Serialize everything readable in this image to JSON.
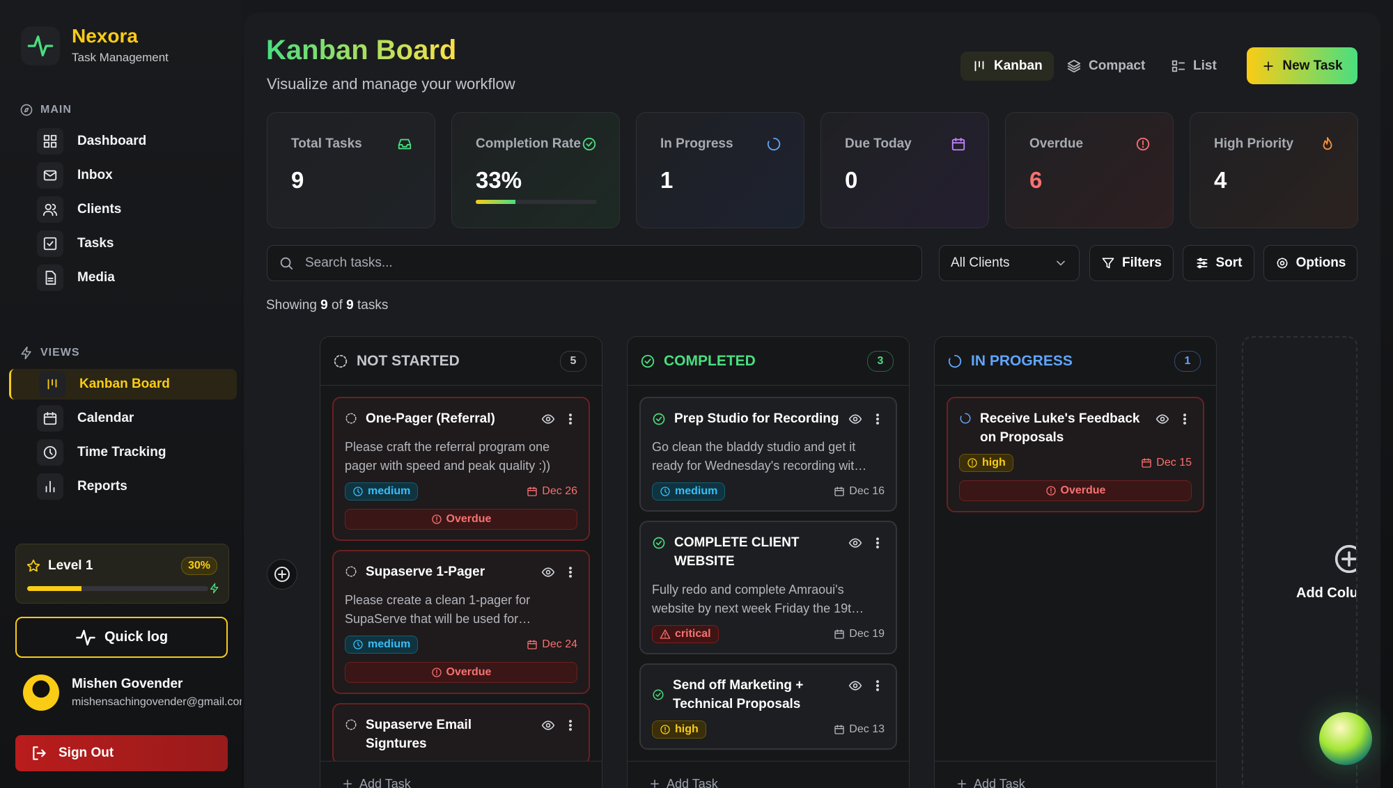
{
  "sidebar": {
    "brand": "Nexora",
    "tagline": "Task Management",
    "sections": [
      {
        "title": "MAIN",
        "items": [
          "Dashboard",
          "Inbox",
          "Clients",
          "Tasks",
          "Media"
        ]
      },
      {
        "title": "VIEWS",
        "items": [
          "Kanban Board",
          "Calendar",
          "Time Tracking",
          "Reports"
        ]
      }
    ],
    "level": {
      "label": "Level 1",
      "percent": "30%"
    },
    "quick_log": "Quick log",
    "user": {
      "name": "Mishen Govender",
      "email": "mishensachingovender@gmail.com"
    },
    "sign_out": "Sign Out"
  },
  "header": {
    "title": "Kanban Board",
    "subtitle": "Visualize and manage your workflow",
    "views": [
      "Kanban",
      "Compact",
      "List"
    ],
    "new_task": "New Task"
  },
  "stats": [
    {
      "label": "Total Tasks",
      "value": "9"
    },
    {
      "label": "Completion Rate",
      "value": "33%"
    },
    {
      "label": "In Progress",
      "value": "1"
    },
    {
      "label": "Due Today",
      "value": "0"
    },
    {
      "label": "Overdue",
      "value": "6"
    },
    {
      "label": "High Priority",
      "value": "4"
    }
  ],
  "toolbar": {
    "search": "Search tasks...",
    "client": "All Clients",
    "buttons": [
      "Filters",
      "Sort",
      "Options"
    ]
  },
  "showing": {
    "prefix": "Showing",
    "shown": "9",
    "of": "of",
    "total": "9",
    "suffix": "tasks"
  },
  "columns": [
    {
      "title": "NOT STARTED",
      "count": "5",
      "cards": [
        {
          "title": "One-Pager (Referral)",
          "description": "Please craft the referral program one pager with speed and peak quality :))",
          "priority": "medium",
          "due": "Dec 26",
          "status": "Overdue"
        },
        {
          "title": "Supaserve 1-Pager",
          "description": "Please create a clean 1-pager for SupaServe that will be used for…",
          "priority": "medium",
          "due": "Dec 24",
          "status": "Overdue"
        },
        {
          "title": "Supaserve Email Signtures"
        }
      ]
    },
    {
      "title": "COMPLETED",
      "count": "3",
      "cards": [
        {
          "title": "Prep Studio for Recording",
          "description": "Go clean the bladdy studio and get it ready for Wednesday's recording wit…",
          "priority": "medium",
          "due": "Dec 16"
        },
        {
          "title": "COMPLETE CLIENT WEBSITE",
          "description": "Fully redo and complete Amraoui's website by next week Friday the 19t…",
          "priority": "critical",
          "due": "Dec 19"
        },
        {
          "title": "Send off Marketing + Technical Proposals",
          "priority": "high",
          "due": "Dec 13"
        }
      ]
    },
    {
      "title": "IN PROGRESS",
      "count": "1",
      "cards": [
        {
          "title": "Receive Luke's Feedback on Proposals",
          "priority": "high",
          "due": "Dec 15",
          "status": "Overdue"
        }
      ]
    }
  ],
  "add_task": "Add Task",
  "add_column": "Add Column"
}
